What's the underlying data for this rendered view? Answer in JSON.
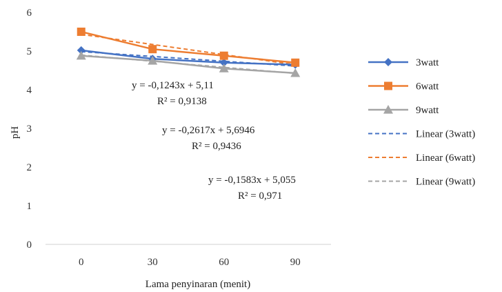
{
  "chart_data": {
    "type": "line",
    "title": "",
    "xlabel": "Lama  penyinaran (menit)",
    "ylabel": "pH",
    "x": [
      0,
      30,
      60,
      90
    ],
    "xlim": [
      0,
      90
    ],
    "ylim": [
      0,
      6
    ],
    "yticks": [
      0,
      1,
      2,
      3,
      4,
      5,
      6
    ],
    "grid": false,
    "legend_position": "right",
    "series": [
      {
        "name": "3watt",
        "values": [
          5.02,
          4.8,
          4.7,
          4.65
        ],
        "color": "#4472c4",
        "marker": "diamond"
      },
      {
        "name": "6watt",
        "values": [
          5.5,
          5.05,
          4.88,
          4.7
        ],
        "color": "#ed7d31",
        "marker": "square"
      },
      {
        "name": "9watt",
        "values": [
          4.88,
          4.75,
          4.55,
          4.43
        ],
        "color": "#a5a5a5",
        "marker": "triangle"
      }
    ],
    "trendlines": [
      {
        "name": "Linear (3watt)",
        "color": "#4472c4",
        "slope": -0.1243,
        "intercept": 5.11,
        "equation": "y = -0,1243x  + 5,11",
        "r2": "R² = 0,9138"
      },
      {
        "name": "Linear (6watt)",
        "color": "#ed7d31",
        "slope": -0.2617,
        "intercept": 5.6946,
        "equation": "y = -0,2617x  + 5,6946",
        "r2": "R² = 0,9436"
      },
      {
        "name": "Linear (9watt)",
        "color": "#a5a5a5",
        "slope": -0.1583,
        "intercept": 5.055,
        "equation": "y = -0,1583x  + 5,055",
        "r2": "R² = 0,971"
      }
    ]
  }
}
